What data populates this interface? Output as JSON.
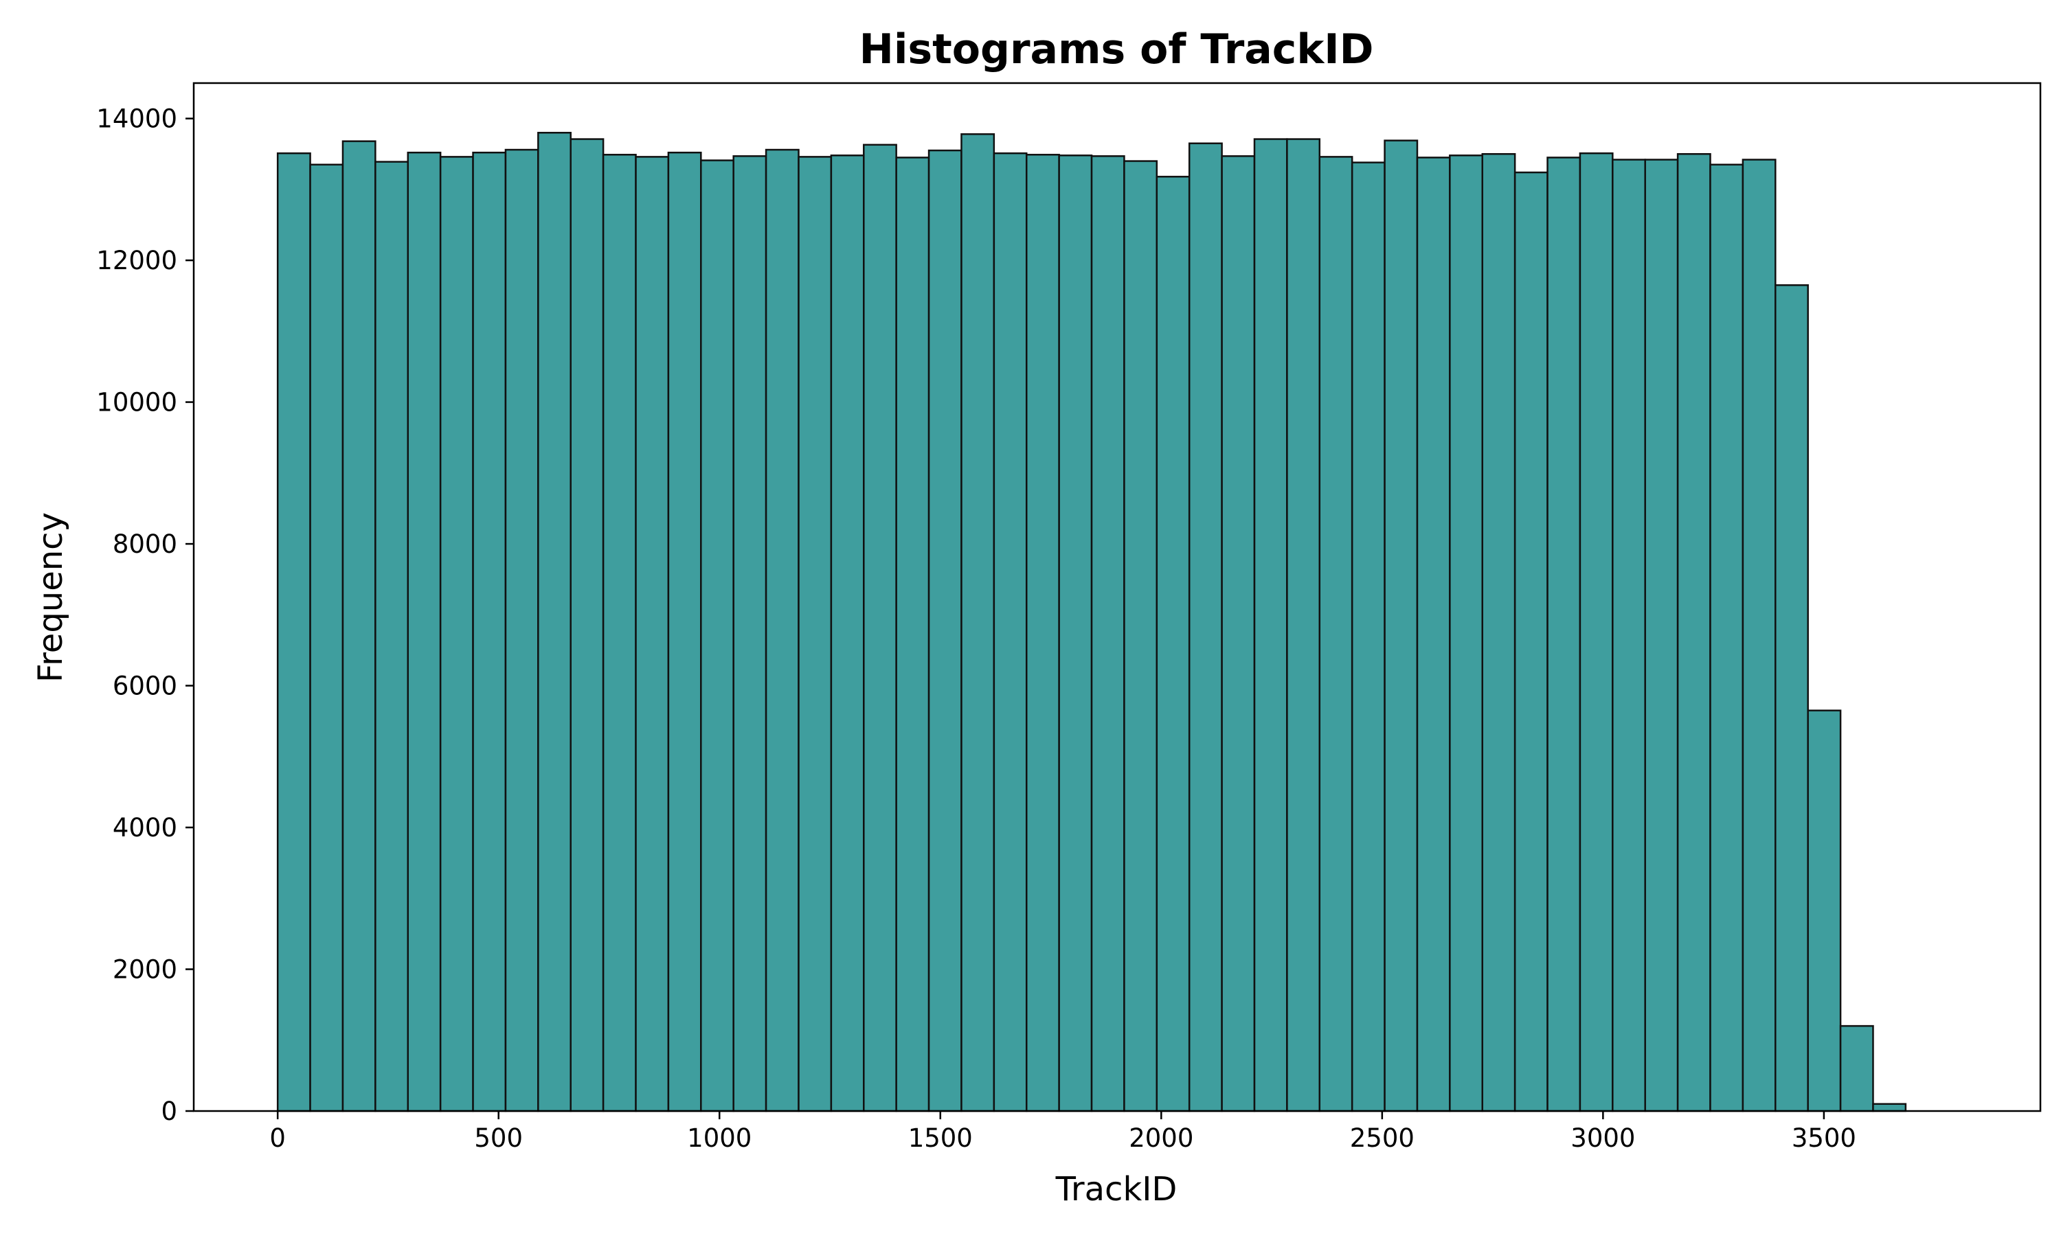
{
  "chart_data": {
    "type": "bar",
    "title": "Histograms of TrackID",
    "xlabel": "TrackID",
    "ylabel": "Frequency",
    "bin_start": 0,
    "bin_width": 73.7,
    "values": [
      13510,
      13350,
      13680,
      13390,
      13520,
      13460,
      13520,
      13560,
      13800,
      13710,
      13490,
      13460,
      13520,
      13410,
      13470,
      13560,
      13460,
      13480,
      13630,
      13450,
      13550,
      13780,
      13510,
      13490,
      13480,
      13470,
      13400,
      13180,
      13650,
      13470,
      13710,
      13710,
      13460,
      13380,
      13690,
      13450,
      13480,
      13500,
      13240,
      13450,
      13510,
      13420,
      13420,
      13500,
      13350,
      13420,
      11650,
      5650,
      1200,
      100
    ],
    "xlim": [
      -190,
      3990
    ],
    "ylim": [
      0,
      14500
    ],
    "xticks": [
      0,
      500,
      1000,
      1500,
      2000,
      2500,
      3000,
      3500
    ],
    "xtick_labels": [
      "0",
      "500",
      "1000",
      "1500",
      "2000",
      "2500",
      "3000",
      "3500"
    ],
    "yticks": [
      0,
      2000,
      4000,
      6000,
      8000,
      10000,
      12000,
      14000
    ],
    "ytick_labels": [
      "0",
      "2000",
      "4000",
      "6000",
      "8000",
      "10000",
      "12000",
      "14000"
    ],
    "bar_color": "#3f9e9e",
    "edge_color": "#111111",
    "grid": false,
    "legend": false
  }
}
